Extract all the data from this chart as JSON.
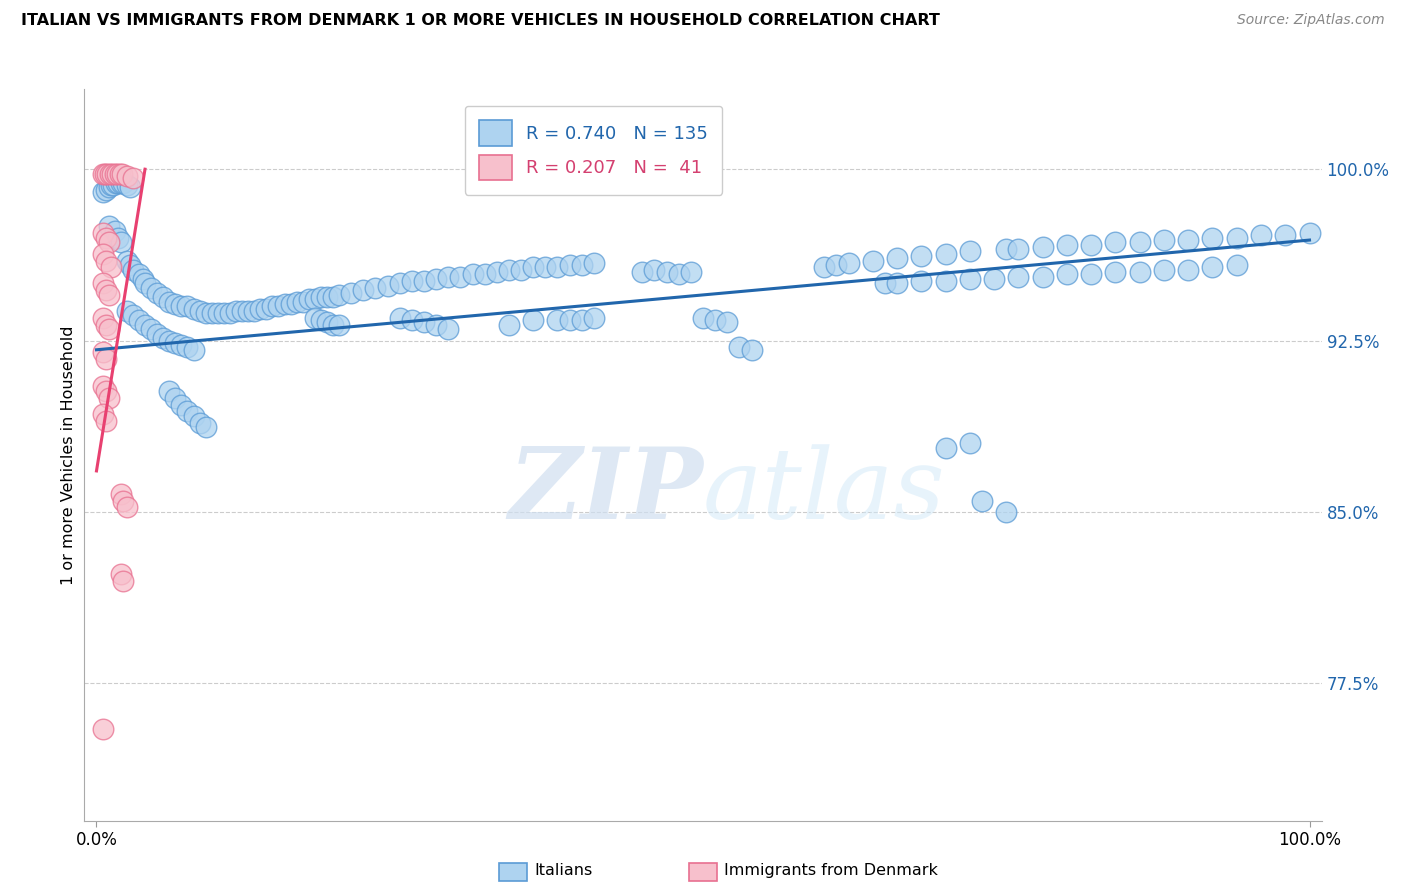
{
  "title": "ITALIAN VS IMMIGRANTS FROM DENMARK 1 OR MORE VEHICLES IN HOUSEHOLD CORRELATION CHART",
  "source": "Source: ZipAtlas.com",
  "ylabel": "1 or more Vehicles in Household",
  "ytick_labels": [
    "77.5%",
    "85.0%",
    "92.5%",
    "100.0%"
  ],
  "ytick_values": [
    0.775,
    0.85,
    0.925,
    1.0
  ],
  "xtick_labels": [
    "0.0%",
    "100.0%"
  ],
  "xtick_values": [
    0.0,
    1.0
  ],
  "xlim": [
    -0.01,
    1.01
  ],
  "ylim": [
    0.715,
    1.035
  ],
  "legend_blue_r": "0.740",
  "legend_blue_n": "135",
  "legend_pink_r": "0.207",
  "legend_pink_n": " 41",
  "blue_fill": "#AED3F0",
  "pink_fill": "#F7C0CC",
  "blue_edge": "#5B9BD5",
  "pink_edge": "#E87090",
  "blue_line": "#2166AC",
  "pink_line": "#E84070",
  "watermark_zip": "ZIP",
  "watermark_atlas": "atlas",
  "title_fontsize": 11.5,
  "blue_scatter": [
    [
      0.005,
      0.99
    ],
    [
      0.008,
      0.991
    ],
    [
      0.01,
      0.992
    ],
    [
      0.012,
      0.993
    ],
    [
      0.014,
      0.993
    ],
    [
      0.016,
      0.994
    ],
    [
      0.018,
      0.994
    ],
    [
      0.02,
      0.994
    ],
    [
      0.022,
      0.994
    ],
    [
      0.025,
      0.993
    ],
    [
      0.028,
      0.992
    ],
    [
      0.01,
      0.975
    ],
    [
      0.015,
      0.973
    ],
    [
      0.018,
      0.97
    ],
    [
      0.02,
      0.968
    ],
    [
      0.025,
      0.96
    ],
    [
      0.028,
      0.958
    ],
    [
      0.03,
      0.956
    ],
    [
      0.035,
      0.954
    ],
    [
      0.038,
      0.952
    ],
    [
      0.04,
      0.95
    ],
    [
      0.045,
      0.948
    ],
    [
      0.05,
      0.946
    ],
    [
      0.055,
      0.944
    ],
    [
      0.025,
      0.938
    ],
    [
      0.03,
      0.936
    ],
    [
      0.035,
      0.934
    ],
    [
      0.04,
      0.932
    ],
    [
      0.045,
      0.93
    ],
    [
      0.05,
      0.928
    ],
    [
      0.055,
      0.926
    ],
    [
      0.06,
      0.925
    ],
    [
      0.065,
      0.924
    ],
    [
      0.07,
      0.923
    ],
    [
      0.075,
      0.922
    ],
    [
      0.08,
      0.921
    ],
    [
      0.06,
      0.942
    ],
    [
      0.065,
      0.941
    ],
    [
      0.07,
      0.94
    ],
    [
      0.075,
      0.94
    ],
    [
      0.08,
      0.939
    ],
    [
      0.085,
      0.938
    ],
    [
      0.09,
      0.937
    ],
    [
      0.095,
      0.937
    ],
    [
      0.1,
      0.937
    ],
    [
      0.105,
      0.937
    ],
    [
      0.11,
      0.937
    ],
    [
      0.115,
      0.938
    ],
    [
      0.12,
      0.938
    ],
    [
      0.125,
      0.938
    ],
    [
      0.13,
      0.938
    ],
    [
      0.135,
      0.939
    ],
    [
      0.14,
      0.939
    ],
    [
      0.145,
      0.94
    ],
    [
      0.15,
      0.94
    ],
    [
      0.155,
      0.941
    ],
    [
      0.16,
      0.941
    ],
    [
      0.165,
      0.942
    ],
    [
      0.17,
      0.942
    ],
    [
      0.175,
      0.943
    ],
    [
      0.18,
      0.943
    ],
    [
      0.185,
      0.944
    ],
    [
      0.19,
      0.944
    ],
    [
      0.195,
      0.944
    ],
    [
      0.2,
      0.945
    ],
    [
      0.21,
      0.946
    ],
    [
      0.22,
      0.947
    ],
    [
      0.23,
      0.948
    ],
    [
      0.24,
      0.949
    ],
    [
      0.25,
      0.95
    ],
    [
      0.26,
      0.951
    ],
    [
      0.27,
      0.951
    ],
    [
      0.28,
      0.952
    ],
    [
      0.29,
      0.953
    ],
    [
      0.3,
      0.953
    ],
    [
      0.31,
      0.954
    ],
    [
      0.32,
      0.954
    ],
    [
      0.33,
      0.955
    ],
    [
      0.34,
      0.956
    ],
    [
      0.35,
      0.956
    ],
    [
      0.36,
      0.957
    ],
    [
      0.37,
      0.957
    ],
    [
      0.38,
      0.957
    ],
    [
      0.39,
      0.958
    ],
    [
      0.4,
      0.958
    ],
    [
      0.41,
      0.959
    ],
    [
      0.18,
      0.935
    ],
    [
      0.185,
      0.934
    ],
    [
      0.19,
      0.933
    ],
    [
      0.195,
      0.932
    ],
    [
      0.2,
      0.932
    ],
    [
      0.25,
      0.935
    ],
    [
      0.26,
      0.934
    ],
    [
      0.27,
      0.933
    ],
    [
      0.28,
      0.932
    ],
    [
      0.29,
      0.93
    ],
    [
      0.34,
      0.932
    ],
    [
      0.36,
      0.934
    ],
    [
      0.38,
      0.934
    ],
    [
      0.39,
      0.934
    ],
    [
      0.4,
      0.934
    ],
    [
      0.41,
      0.935
    ],
    [
      0.45,
      0.955
    ],
    [
      0.46,
      0.956
    ],
    [
      0.47,
      0.955
    ],
    [
      0.48,
      0.954
    ],
    [
      0.49,
      0.955
    ],
    [
      0.5,
      0.935
    ],
    [
      0.51,
      0.934
    ],
    [
      0.52,
      0.933
    ],
    [
      0.53,
      0.922
    ],
    [
      0.54,
      0.921
    ],
    [
      0.6,
      0.957
    ],
    [
      0.61,
      0.958
    ],
    [
      0.62,
      0.959
    ],
    [
      0.64,
      0.96
    ],
    [
      0.66,
      0.961
    ],
    [
      0.68,
      0.962
    ],
    [
      0.7,
      0.963
    ],
    [
      0.72,
      0.964
    ],
    [
      0.75,
      0.965
    ],
    [
      0.76,
      0.965
    ],
    [
      0.78,
      0.966
    ],
    [
      0.8,
      0.967
    ],
    [
      0.82,
      0.967
    ],
    [
      0.84,
      0.968
    ],
    [
      0.86,
      0.968
    ],
    [
      0.88,
      0.969
    ],
    [
      0.9,
      0.969
    ],
    [
      0.92,
      0.97
    ],
    [
      0.94,
      0.97
    ],
    [
      0.96,
      0.971
    ],
    [
      0.98,
      0.971
    ],
    [
      1.0,
      0.972
    ],
    [
      0.65,
      0.95
    ],
    [
      0.66,
      0.95
    ],
    [
      0.68,
      0.951
    ],
    [
      0.7,
      0.951
    ],
    [
      0.72,
      0.952
    ],
    [
      0.74,
      0.952
    ],
    [
      0.76,
      0.953
    ],
    [
      0.78,
      0.953
    ],
    [
      0.8,
      0.954
    ],
    [
      0.82,
      0.954
    ],
    [
      0.84,
      0.955
    ],
    [
      0.86,
      0.955
    ],
    [
      0.88,
      0.956
    ],
    [
      0.9,
      0.956
    ],
    [
      0.92,
      0.957
    ],
    [
      0.94,
      0.958
    ],
    [
      0.06,
      0.903
    ],
    [
      0.065,
      0.9
    ],
    [
      0.07,
      0.897
    ],
    [
      0.075,
      0.894
    ],
    [
      0.08,
      0.892
    ],
    [
      0.085,
      0.889
    ],
    [
      0.09,
      0.887
    ],
    [
      0.7,
      0.878
    ],
    [
      0.72,
      0.88
    ],
    [
      0.73,
      0.855
    ],
    [
      0.75,
      0.85
    ]
  ],
  "pink_scatter": [
    [
      0.005,
      0.998
    ],
    [
      0.007,
      0.998
    ],
    [
      0.009,
      0.998
    ],
    [
      0.011,
      0.998
    ],
    [
      0.013,
      0.998
    ],
    [
      0.015,
      0.998
    ],
    [
      0.017,
      0.998
    ],
    [
      0.019,
      0.998
    ],
    [
      0.021,
      0.998
    ],
    [
      0.025,
      0.997
    ],
    [
      0.03,
      0.996
    ],
    [
      0.005,
      0.972
    ],
    [
      0.008,
      0.97
    ],
    [
      0.01,
      0.968
    ],
    [
      0.005,
      0.963
    ],
    [
      0.008,
      0.96
    ],
    [
      0.012,
      0.957
    ],
    [
      0.005,
      0.95
    ],
    [
      0.008,
      0.947
    ],
    [
      0.01,
      0.945
    ],
    [
      0.005,
      0.935
    ],
    [
      0.008,
      0.932
    ],
    [
      0.01,
      0.93
    ],
    [
      0.005,
      0.92
    ],
    [
      0.008,
      0.917
    ],
    [
      0.005,
      0.905
    ],
    [
      0.008,
      0.903
    ],
    [
      0.01,
      0.9
    ],
    [
      0.005,
      0.893
    ],
    [
      0.008,
      0.89
    ],
    [
      0.02,
      0.858
    ],
    [
      0.022,
      0.855
    ],
    [
      0.025,
      0.852
    ],
    [
      0.02,
      0.823
    ],
    [
      0.022,
      0.82
    ],
    [
      0.005,
      0.755
    ]
  ],
  "blue_trendline": [
    [
      0.0,
      0.921
    ],
    [
      1.0,
      0.969
    ]
  ],
  "pink_trendline": [
    [
      0.0,
      0.868
    ],
    [
      0.04,
      1.0
    ]
  ]
}
